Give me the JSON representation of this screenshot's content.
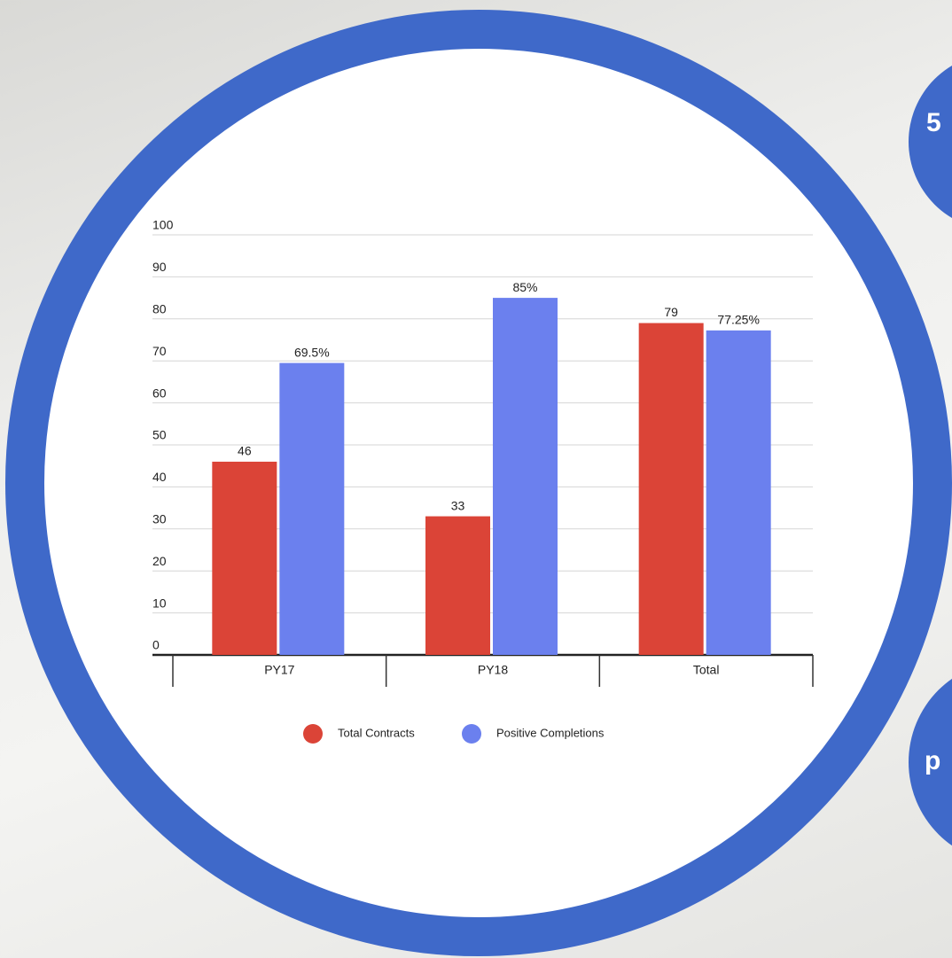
{
  "chart_data": {
    "type": "bar",
    "categories": [
      "PY17",
      "PY18",
      "Total"
    ],
    "series": [
      {
        "name": "Total Contracts",
        "color": "#db4437",
        "values": [
          46,
          33,
          79
        ]
      },
      {
        "name": "Positive Completions",
        "color": "#6b80ee",
        "values": [
          69.5,
          85,
          77.25
        ],
        "value_labels": [
          "69.5%",
          "85%",
          "77.25%"
        ]
      }
    ],
    "ylim": [
      0,
      100
    ],
    "yticks": [
      0,
      10,
      20,
      30,
      40,
      50,
      60,
      70,
      80,
      90,
      100
    ],
    "grid": true,
    "legend": "bottom"
  },
  "side_labels": [
    "5",
    "p"
  ]
}
